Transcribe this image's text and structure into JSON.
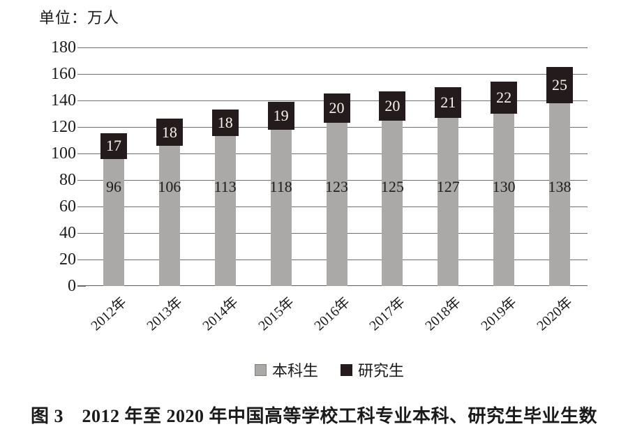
{
  "unit_label": "单位：万人",
  "caption": "图 3　2012 年至 2020 年中国高等学校工科专业本科、研究生毕业生数",
  "chart_data": {
    "type": "bar",
    "stacked": true,
    "unit_label": "单位：万人",
    "categories": [
      "2012年",
      "2013年",
      "2014年",
      "2015年",
      "2016年",
      "2017年",
      "2018年",
      "2019年",
      "2020年"
    ],
    "series": [
      {
        "name": "本科生",
        "color": "#aaa9a7",
        "label_color": "#1c1c1c",
        "values": [
          96,
          106,
          113,
          118,
          123,
          125,
          127,
          130,
          138
        ]
      },
      {
        "name": "研究生",
        "color": "#241c1c",
        "label_color": "#f7f3ed",
        "values": [
          17,
          18,
          18,
          19,
          20,
          20,
          21,
          22,
          25
        ]
      }
    ],
    "ylabel": "",
    "xlabel": "",
    "ylim": [
      0,
      180
    ],
    "ytick_step": 20,
    "yticks": [
      0,
      20,
      40,
      60,
      80,
      100,
      120,
      140,
      160,
      180
    ],
    "grid": true,
    "legend_position": "bottom",
    "caption": "图 3　2012 年至 2020 年中国高等学校工科专业本科、研究生毕业生数"
  },
  "colors": {
    "gridline": "#6f6f6f",
    "axis": "#5e5e5e",
    "background": "#ffffff",
    "text": "#1a1a1a"
  }
}
